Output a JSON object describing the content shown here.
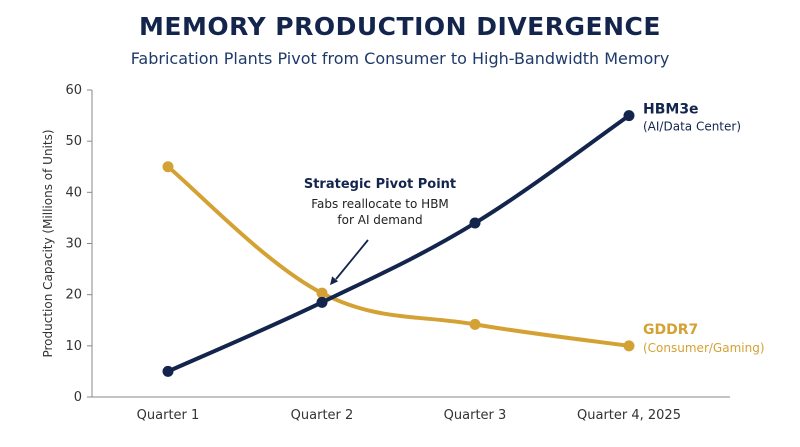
{
  "chart_data": {
    "type": "line",
    "title": "MEMORY PRODUCTION DIVERGENCE",
    "subtitle": "Fabrication Plants Pivot from Consumer to High-Bandwidth Memory",
    "ylabel": "Production Capacity (Millions of Units)",
    "xlabel": "",
    "categories": [
      "Quarter 1",
      "Quarter 2",
      "Quarter 3",
      "Quarter 4, 2025"
    ],
    "ylim": [
      0,
      60
    ],
    "yticks": [
      0,
      10,
      20,
      30,
      40,
      50,
      60
    ],
    "grid": false,
    "series": [
      {
        "name": "HBM3e",
        "sublabel": "(AI/Data Center)",
        "values": [
          5,
          18.5,
          34,
          55
        ],
        "color": "#14254d"
      },
      {
        "name": "GDDR7",
        "sublabel": "(Consumer/Gaming)",
        "values": [
          45,
          20.3,
          14.2,
          10
        ],
        "color": "#d4a234"
      }
    ],
    "annotation": {
      "title": "Strategic Pivot Point",
      "lines": [
        "Fabs reallocate to HBM",
        "for AI demand"
      ],
      "category": "Quarter 2",
      "value": 20.3
    }
  }
}
